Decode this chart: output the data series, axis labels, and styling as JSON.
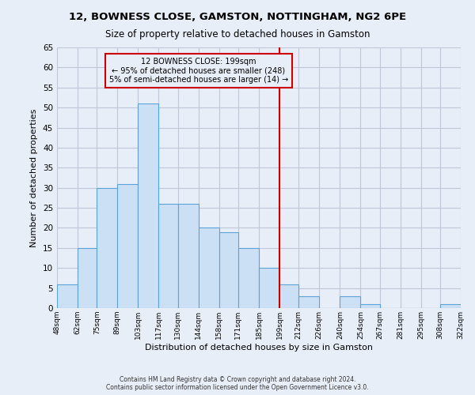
{
  "title": "12, BOWNESS CLOSE, GAMSTON, NOTTINGHAM, NG2 6PE",
  "subtitle": "Size of property relative to detached houses in Gamston",
  "xlabel": "Distribution of detached houses by size in Gamston",
  "ylabel": "Number of detached properties",
  "bin_edges": [
    48,
    62,
    75,
    89,
    103,
    117,
    130,
    144,
    158,
    171,
    185,
    199,
    212,
    226,
    240,
    254,
    267,
    281,
    295,
    308,
    322
  ],
  "bin_counts": [
    6,
    15,
    30,
    31,
    51,
    26,
    26,
    20,
    19,
    15,
    10,
    6,
    3,
    0,
    3,
    1,
    0,
    0,
    0,
    1
  ],
  "tick_labels": [
    "48sqm",
    "62sqm",
    "75sqm",
    "89sqm",
    "103sqm",
    "117sqm",
    "130sqm",
    "144sqm",
    "158sqm",
    "171sqm",
    "185sqm",
    "199sqm",
    "212sqm",
    "226sqm",
    "240sqm",
    "254sqm",
    "267sqm",
    "281sqm",
    "295sqm",
    "308sqm",
    "322sqm"
  ],
  "bar_facecolor": "#cce0f5",
  "bar_edgecolor": "#5ba3d9",
  "grid_color": "#c0c8d8",
  "bg_color": "#e8eef8",
  "vline_x": 199,
  "vline_color": "#cc0000",
  "annotation_title": "12 BOWNESS CLOSE: 199sqm",
  "annotation_line1": "← 95% of detached houses are smaller (248)",
  "annotation_line2": "5% of semi-detached houses are larger (14) →",
  "annotation_box_edgecolor": "#cc0000",
  "ylim": [
    0,
    65
  ],
  "yticks": [
    0,
    5,
    10,
    15,
    20,
    25,
    30,
    35,
    40,
    45,
    50,
    55,
    60,
    65
  ],
  "footer_line1": "Contains HM Land Registry data © Crown copyright and database right 2024.",
  "footer_line2": "Contains public sector information licensed under the Open Government Licence v3.0."
}
